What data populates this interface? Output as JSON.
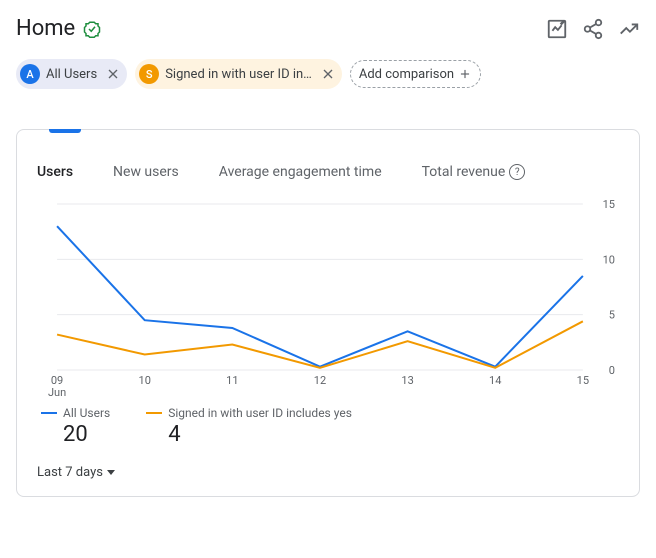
{
  "page_title": "Home",
  "segments": [
    {
      "badge": "A",
      "badge_color": "#1a73e8",
      "bg": "#e8eaf6",
      "label": "All Users"
    },
    {
      "badge": "S",
      "badge_color": "#f29900",
      "bg": "#fef3e0",
      "label": "Signed in with user ID in…"
    }
  ],
  "add_comparison_label": "Add comparison",
  "metrics": {
    "users": "Users",
    "new_users": "New users",
    "avg_engagement": "Average engagement time",
    "total_revenue": "Total revenue"
  },
  "chart": {
    "type": "line",
    "x_categories": [
      "09",
      "10",
      "11",
      "12",
      "13",
      "14",
      "15"
    ],
    "x_sublabel": "Jun",
    "y_ticks": [
      0,
      5,
      10,
      15
    ],
    "ylim": [
      0,
      15
    ],
    "grid_color": "#e8eaed",
    "background_color": "#ffffff",
    "label_fontsize": 11,
    "label_color": "#5f6368",
    "series": [
      {
        "name": "All Users",
        "color": "#1a73e8",
        "values": [
          13,
          4.5,
          3.8,
          0.3,
          3.5,
          0.3,
          8.5
        ]
      },
      {
        "name": "Signed in with user ID includes yes",
        "color": "#f29900",
        "values": [
          3.2,
          1.4,
          2.3,
          0.2,
          2.6,
          0.2,
          4.4
        ]
      }
    ]
  },
  "legend_totals": [
    "20",
    "4"
  ],
  "period_label": "Last 7 days"
}
